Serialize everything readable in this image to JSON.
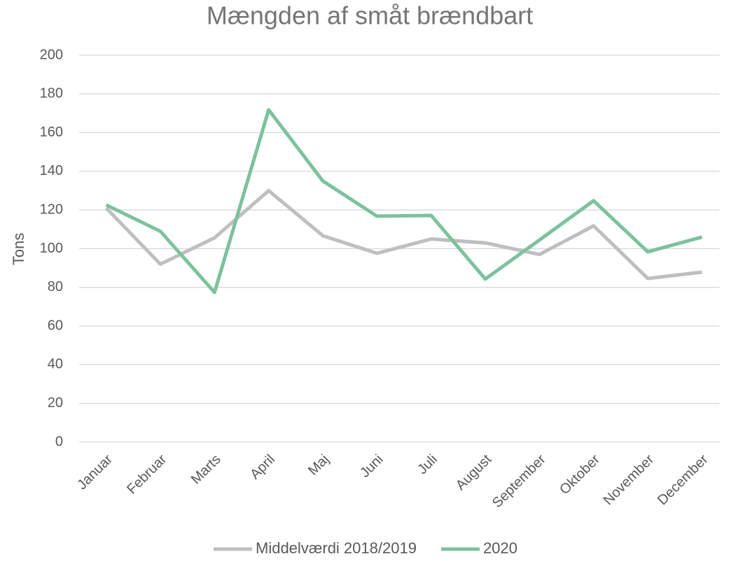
{
  "chart_data": {
    "type": "line",
    "title": "Mængden af småt brændbart",
    "y_label": "Tons",
    "categories": [
      "Januar",
      "Februar",
      "Marts",
      "April",
      "Maj",
      "Juni",
      "Juli",
      "August",
      "September",
      "Oktober",
      "November",
      "December"
    ],
    "series": [
      {
        "name": "Middelværdi 2018/2019",
        "color": "#bfbfbf",
        "values": [
          121,
          92,
          105.6,
          130,
          106.7,
          97.6,
          105,
          103,
          97,
          111.8,
          84.6,
          87.9
        ]
      },
      {
        "name": "2020",
        "color": "#7cc29c",
        "values": [
          122.6,
          109,
          77.4,
          171.8,
          135,
          116.8,
          117.2,
          84.3,
          104.5,
          124.8,
          98.4,
          106
        ]
      }
    ],
    "ylim": [
      0,
      200
    ],
    "yticks": [
      0,
      20,
      40,
      60,
      80,
      100,
      120,
      140,
      160,
      180,
      200
    ],
    "grid": true,
    "legend": "bottom"
  }
}
